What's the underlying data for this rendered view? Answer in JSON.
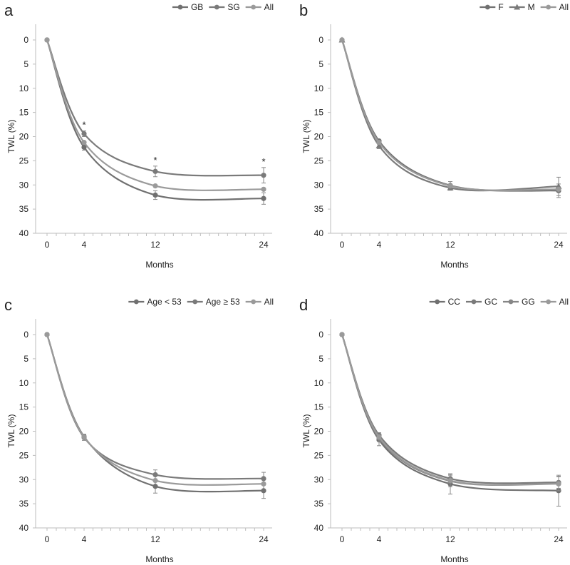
{
  "chart_data": [
    {
      "panel": "a",
      "type": "line",
      "xlabel": "Months",
      "ylabel": "TWL (%)",
      "x": [
        0,
        4,
        12,
        24
      ],
      "x_ticks": [
        "0",
        "4",
        "12",
        "24"
      ],
      "y_ticks": [
        "0",
        "5",
        "10",
        "15",
        "20",
        "25",
        "30",
        "35",
        "40"
      ],
      "ylim": [
        0,
        40
      ],
      "y_inverted": true,
      "legend_position": "top-right",
      "series": [
        {
          "name": "GB",
          "marker": "circle",
          "color": "#707070",
          "values": [
            0,
            22.2,
            32.1,
            32.8
          ],
          "errors": [
            0,
            0.6,
            0.9,
            1.2
          ]
        },
        {
          "name": "SG",
          "marker": "circle",
          "color": "#7a7a7a",
          "values": [
            0,
            19.4,
            27.2,
            28.0
          ],
          "errors": [
            0,
            0.6,
            1.1,
            1.6
          ]
        },
        {
          "name": "All",
          "marker": "circle",
          "color": "#9a9a9a",
          "values": [
            0,
            21.2,
            30.2,
            30.9
          ],
          "errors": [
            0,
            0,
            0,
            0
          ]
        }
      ],
      "annotations": [
        {
          "x": 4,
          "text": "*"
        },
        {
          "x": 12,
          "text": "*"
        },
        {
          "x": 24,
          "text": "*"
        }
      ]
    },
    {
      "panel": "b",
      "type": "line",
      "xlabel": "Months",
      "ylabel": "TWL (%)",
      "x": [
        0,
        4,
        12,
        24
      ],
      "x_ticks": [
        "0",
        "4",
        "12",
        "24"
      ],
      "y_ticks": [
        "0",
        "5",
        "10",
        "15",
        "20",
        "25",
        "30",
        "35",
        "40"
      ],
      "ylim": [
        0,
        40
      ],
      "y_inverted": true,
      "legend_position": "top-right",
      "series": [
        {
          "name": "F",
          "marker": "circle",
          "color": "#707070",
          "values": [
            0,
            20.9,
            30.1,
            31.2
          ],
          "errors": [
            0,
            0,
            0.8,
            1.4
          ]
        },
        {
          "name": "M",
          "marker": "triangle",
          "color": "#7a7a7a",
          "values": [
            0,
            21.9,
            30.6,
            30.3
          ],
          "errors": [
            0,
            0.6,
            0.5,
            1.9
          ]
        },
        {
          "name": "All",
          "marker": "circle",
          "color": "#9a9a9a",
          "values": [
            0,
            21.2,
            30.2,
            30.9
          ],
          "errors": [
            0,
            0,
            0,
            0
          ]
        }
      ],
      "annotations": []
    },
    {
      "panel": "c",
      "type": "line",
      "xlabel": "Months",
      "ylabel": "TWL (%)",
      "x": [
        0,
        4,
        12,
        24
      ],
      "x_ticks": [
        "0",
        "4",
        "12",
        "24"
      ],
      "y_ticks": [
        "0",
        "5",
        "10",
        "15",
        "20",
        "25",
        "30",
        "35",
        "40"
      ],
      "ylim": [
        0,
        40
      ],
      "y_inverted": true,
      "legend_position": "top-right",
      "series": [
        {
          "name": "Age < 53",
          "marker": "circle",
          "color": "#707070",
          "values": [
            0,
            21.1,
            31.4,
            32.3
          ],
          "errors": [
            0,
            0.5,
            1.4,
            1.6
          ]
        },
        {
          "name": "Age ≥ 53",
          "marker": "circle",
          "color": "#7a7a7a",
          "values": [
            0,
            21.3,
            29.0,
            29.8
          ],
          "errors": [
            0,
            0.6,
            1.0,
            1.3
          ]
        },
        {
          "name": "All",
          "marker": "circle",
          "color": "#9a9a9a",
          "values": [
            0,
            21.2,
            30.2,
            30.9
          ],
          "errors": [
            0,
            0,
            0,
            0
          ]
        }
      ],
      "annotations": []
    },
    {
      "panel": "d",
      "type": "line",
      "xlabel": "Months",
      "ylabel": "TWL (%)",
      "x": [
        0,
        4,
        12,
        24
      ],
      "x_ticks": [
        "0",
        "4",
        "12",
        "24"
      ],
      "y_ticks": [
        "0",
        "5",
        "10",
        "15",
        "20",
        "25",
        "30",
        "35",
        "40"
      ],
      "ylim": [
        0,
        40
      ],
      "y_inverted": true,
      "legend_position": "top-right",
      "series": [
        {
          "name": "CC",
          "marker": "circle",
          "color": "#707070",
          "values": [
            0,
            21.8,
            30.9,
            32.3
          ],
          "errors": [
            0,
            1.2,
            2.1,
            3.2
          ]
        },
        {
          "name": "GC",
          "marker": "circle",
          "color": "#7a7a7a",
          "values": [
            0,
            20.8,
            29.8,
            30.6
          ],
          "errors": [
            0,
            0.5,
            0.9,
            1.2
          ]
        },
        {
          "name": "GG",
          "marker": "circle",
          "color": "#868686",
          "values": [
            0,
            21.4,
            30.3,
            30.8
          ],
          "errors": [
            0,
            0.7,
            1.2,
            1.5
          ]
        },
        {
          "name": "All",
          "marker": "circle",
          "color": "#9a9a9a",
          "values": [
            0,
            21.2,
            30.2,
            30.9
          ],
          "errors": [
            0,
            0,
            0,
            0
          ]
        }
      ],
      "annotations": []
    }
  ]
}
